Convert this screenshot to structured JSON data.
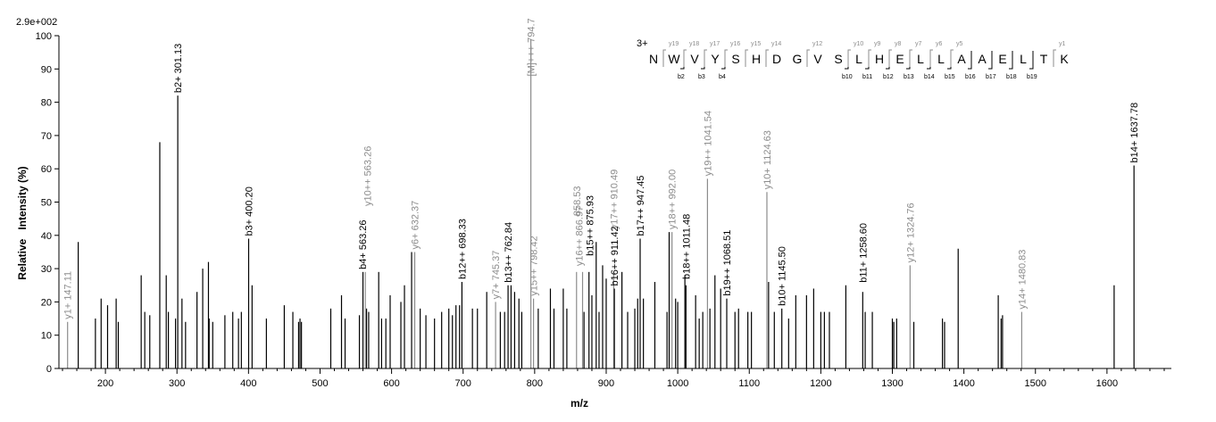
{
  "chart_data": {
    "type": "bar",
    "scale_label": "2.9e+002",
    "xlabel": "m/z",
    "ylabel": "Relative   Intensity (%)",
    "xlim": [
      135,
      1690
    ],
    "ylim": [
      0,
      100
    ],
    "x_ticks": [
      200,
      300,
      400,
      500,
      600,
      700,
      800,
      900,
      1000,
      1100,
      1200,
      1300,
      1400,
      1500,
      1600
    ],
    "y_ticks": [
      0,
      10,
      20,
      30,
      40,
      50,
      60,
      70,
      80,
      90,
      100
    ],
    "colors": {
      "black": "#000000",
      "gray": "#8c8c8c"
    },
    "peaks": [
      [
        147.11,
        14,
        "g"
      ],
      [
        162,
        38,
        "k"
      ],
      [
        186,
        15,
        "k"
      ],
      [
        194,
        21,
        "k"
      ],
      [
        203,
        19,
        "k"
      ],
      [
        215,
        21,
        "k"
      ],
      [
        218,
        14,
        "k"
      ],
      [
        250,
        28,
        "k"
      ],
      [
        255,
        17,
        "k"
      ],
      [
        262,
        16,
        "k"
      ],
      [
        276,
        68,
        "k"
      ],
      [
        285,
        28,
        "k"
      ],
      [
        288,
        17,
        "k"
      ],
      [
        298,
        15,
        "k"
      ],
      [
        301.13,
        82,
        "k"
      ],
      [
        307,
        21,
        "k"
      ],
      [
        312,
        14,
        "k"
      ],
      [
        328,
        23,
        "k"
      ],
      [
        336,
        30,
        "k"
      ],
      [
        344,
        32,
        "k"
      ],
      [
        345,
        15,
        "k"
      ],
      [
        350,
        14,
        "k"
      ],
      [
        367,
        16,
        "k"
      ],
      [
        378,
        17,
        "k"
      ],
      [
        386,
        15,
        "k"
      ],
      [
        390,
        17,
        "k"
      ],
      [
        400.2,
        39,
        "k"
      ],
      [
        405,
        25,
        "k"
      ],
      [
        425,
        15,
        "k"
      ],
      [
        450,
        19,
        "k"
      ],
      [
        462,
        17,
        "k"
      ],
      [
        470,
        14,
        "k"
      ],
      [
        472,
        15,
        "k"
      ],
      [
        474,
        14,
        "k"
      ],
      [
        515,
        18,
        "k"
      ],
      [
        530,
        22,
        "k"
      ],
      [
        535,
        15,
        "k"
      ],
      [
        555,
        16,
        "k"
      ],
      [
        560,
        29,
        "k"
      ],
      [
        563.26,
        29,
        "g"
      ],
      [
        565,
        18,
        "k"
      ],
      [
        568,
        17,
        "k"
      ],
      [
        582,
        29,
        "k"
      ],
      [
        586,
        15,
        "k"
      ],
      [
        592,
        15,
        "k"
      ],
      [
        598,
        22,
        "k"
      ],
      [
        613,
        20,
        "k"
      ],
      [
        618,
        25,
        "k"
      ],
      [
        628,
        35,
        "k"
      ],
      [
        632.37,
        35,
        "g"
      ],
      [
        640,
        18,
        "k"
      ],
      [
        648,
        16,
        "k"
      ],
      [
        660,
        15,
        "k"
      ],
      [
        670,
        17,
        "k"
      ],
      [
        680,
        18,
        "k"
      ],
      [
        685,
        16,
        "k"
      ],
      [
        690,
        19,
        "k"
      ],
      [
        695,
        19,
        "k"
      ],
      [
        698.33,
        26,
        "k"
      ],
      [
        713,
        18,
        "k"
      ],
      [
        720,
        18,
        "k"
      ],
      [
        733,
        23,
        "k"
      ],
      [
        745.37,
        20,
        "g"
      ],
      [
        752,
        17,
        "k"
      ],
      [
        758,
        17,
        "k"
      ],
      [
        762.84,
        25,
        "k"
      ],
      [
        767,
        25,
        "k"
      ],
      [
        772,
        23,
        "k"
      ],
      [
        778,
        21,
        "k"
      ],
      [
        782,
        17,
        "k"
      ],
      [
        794.7,
        99,
        "g"
      ],
      [
        798.42,
        21,
        "g"
      ],
      [
        805,
        18,
        "k"
      ],
      [
        822,
        24,
        "k"
      ],
      [
        827,
        18,
        "k"
      ],
      [
        840,
        24,
        "k"
      ],
      [
        845,
        18,
        "k"
      ],
      [
        858.53,
        29,
        "g"
      ],
      [
        866.97,
        29,
        "g"
      ],
      [
        869,
        17,
        "k"
      ],
      [
        875.93,
        29,
        "k"
      ],
      [
        880,
        22,
        "k"
      ],
      [
        886,
        38,
        "k"
      ],
      [
        890,
        17,
        "k"
      ],
      [
        895,
        31,
        "k"
      ],
      [
        900,
        27,
        "k"
      ],
      [
        910.49,
        29,
        "g"
      ],
      [
        911.42,
        24,
        "k"
      ],
      [
        922,
        29,
        "k"
      ],
      [
        930,
        17,
        "k"
      ],
      [
        940,
        18,
        "k"
      ],
      [
        944,
        21,
        "k"
      ],
      [
        947.45,
        39,
        "k"
      ],
      [
        952,
        21,
        "k"
      ],
      [
        968,
        26,
        "k"
      ],
      [
        985,
        17,
        "k"
      ],
      [
        988,
        41,
        "k"
      ],
      [
        992,
        41,
        "g"
      ],
      [
        997,
        21,
        "k"
      ],
      [
        1000,
        20,
        "k"
      ],
      [
        1010,
        28,
        "k"
      ],
      [
        1011.48,
        25,
        "k"
      ],
      [
        1025,
        22,
        "k"
      ],
      [
        1030,
        15,
        "k"
      ],
      [
        1035,
        17,
        "k"
      ],
      [
        1041.54,
        57,
        "g"
      ],
      [
        1045,
        18,
        "k"
      ],
      [
        1052,
        28,
        "k"
      ],
      [
        1060,
        24,
        "k"
      ],
      [
        1068.51,
        21,
        "k"
      ],
      [
        1080,
        17,
        "k"
      ],
      [
        1085,
        18,
        "k"
      ],
      [
        1098,
        17,
        "k"
      ],
      [
        1103,
        17,
        "k"
      ],
      [
        1124.63,
        53,
        "g"
      ],
      [
        1127,
        26,
        "k"
      ],
      [
        1135,
        17,
        "k"
      ],
      [
        1145.5,
        18,
        "k"
      ],
      [
        1155,
        15,
        "k"
      ],
      [
        1165,
        22,
        "k"
      ],
      [
        1180,
        22,
        "k"
      ],
      [
        1190,
        24,
        "k"
      ],
      [
        1200,
        17,
        "k"
      ],
      [
        1205,
        17,
        "k"
      ],
      [
        1212,
        17,
        "k"
      ],
      [
        1235,
        25,
        "k"
      ],
      [
        1258.6,
        23,
        "k"
      ],
      [
        1262,
        17,
        "k"
      ],
      [
        1272,
        17,
        "k"
      ],
      [
        1300,
        15,
        "k"
      ],
      [
        1302,
        14,
        "k"
      ],
      [
        1306,
        15,
        "k"
      ],
      [
        1324.76,
        31,
        "g"
      ],
      [
        1330,
        14,
        "k"
      ],
      [
        1370,
        15,
        "k"
      ],
      [
        1373,
        14,
        "k"
      ],
      [
        1392,
        36,
        "k"
      ],
      [
        1448,
        22,
        "k"
      ],
      [
        1452,
        15,
        "k"
      ],
      [
        1454,
        16,
        "k"
      ],
      [
        1480.83,
        17,
        "g"
      ],
      [
        1610,
        25,
        "k"
      ],
      [
        1637.78,
        61,
        "k"
      ]
    ],
    "annotations": [
      {
        "text": "y1+ 147.11",
        "x": 147.11,
        "y": 14,
        "color": "gray"
      },
      {
        "text": "b2+ 301.13",
        "x": 301.13,
        "y": 82,
        "color": "black"
      },
      {
        "text": "b3+ 400.20",
        "x": 400.2,
        "y": 39,
        "color": "black"
      },
      {
        "text": "b4+ 563.26",
        "x": 559.5,
        "y": 29,
        "color": "black"
      },
      {
        "text": "y10++ 563.26",
        "x": 566,
        "y": 48,
        "color": "gray"
      },
      {
        "text": "y6+ 632.37",
        "x": 632.37,
        "y": 35,
        "color": "gray"
      },
      {
        "text": "b12++ 698.33",
        "x": 698.33,
        "y": 26,
        "color": "black"
      },
      {
        "text": "y7+ 745.37",
        "x": 745.37,
        "y": 20,
        "color": "gray"
      },
      {
        "text": "b13++ 762.84",
        "x": 762.84,
        "y": 25,
        "color": "black"
      },
      {
        "text": "[M]+++ 794.7",
        "x": 794.7,
        "y": 87,
        "color": "gray"
      },
      {
        "text": "y15++ 798.42",
        "x": 798.42,
        "y": 21,
        "color": "gray"
      },
      {
        "text": "858.53",
        "x": 858.53,
        "y": 45,
        "color": "gray"
      },
      {
        "text": "y16++ 866.97",
        "x": 862,
        "y": 30,
        "color": "gray"
      },
      {
        "text": "b15++ 875.93",
        "x": 877,
        "y": 33,
        "color": "black"
      },
      {
        "text": "y17++ 910.49",
        "x": 910.49,
        "y": 41,
        "color": "gray"
      },
      {
        "text": "b16++ 911.42",
        "x": 911.42,
        "y": 24,
        "color": "black"
      },
      {
        "text": "b17++ 947.45",
        "x": 947.45,
        "y": 39,
        "color": "black"
      },
      {
        "text": "y18++ 992.00",
        "x": 992,
        "y": 41,
        "color": "gray"
      },
      {
        "text": "b18++ 1011.48",
        "x": 1011.48,
        "y": 26,
        "color": "black"
      },
      {
        "text": "y19++ 1041.54",
        "x": 1041.54,
        "y": 57,
        "color": "gray"
      },
      {
        "text": "b19++ 1068.51",
        "x": 1068.51,
        "y": 21,
        "color": "black"
      },
      {
        "text": "y10+ 1124.63",
        "x": 1124.63,
        "y": 53,
        "color": "gray"
      },
      {
        "text": "b10+ 1145.50",
        "x": 1145.5,
        "y": 18,
        "color": "black"
      },
      {
        "text": "b11+ 1258.60",
        "x": 1258.6,
        "y": 25,
        "color": "black"
      },
      {
        "text": "y12+ 1324.76",
        "x": 1324.76,
        "y": 31,
        "color": "gray"
      },
      {
        "text": "y14+ 1480.83",
        "x": 1480.83,
        "y": 17,
        "color": "gray"
      },
      {
        "text": "b14+ 1637.78",
        "x": 1637.78,
        "y": 61,
        "color": "black"
      }
    ],
    "sequence": {
      "charge": "3+",
      "residues": [
        "N",
        "W",
        "V",
        "Y",
        "S",
        "H",
        "D",
        "G",
        "V",
        "S",
        "L",
        "H",
        "E",
        "L",
        "L",
        "A",
        "A",
        "E",
        "L",
        "T",
        "K"
      ],
      "y_ions": [
        "",
        "y19",
        "y18",
        "y17",
        "y16",
        "y15",
        "y14",
        "",
        "y12",
        "",
        "y10",
        "y9",
        "y8",
        "y7",
        "y6",
        "y5",
        "",
        "",
        "",
        "",
        "y1"
      ],
      "b_ions": [
        "",
        "b2",
        "b3",
        "b4",
        "",
        "",
        "",
        "",
        "",
        "b10",
        "b11",
        "b12",
        "b13",
        "b14",
        "b15",
        "b16",
        "b17",
        "b18",
        "b19",
        "",
        ""
      ]
    }
  }
}
